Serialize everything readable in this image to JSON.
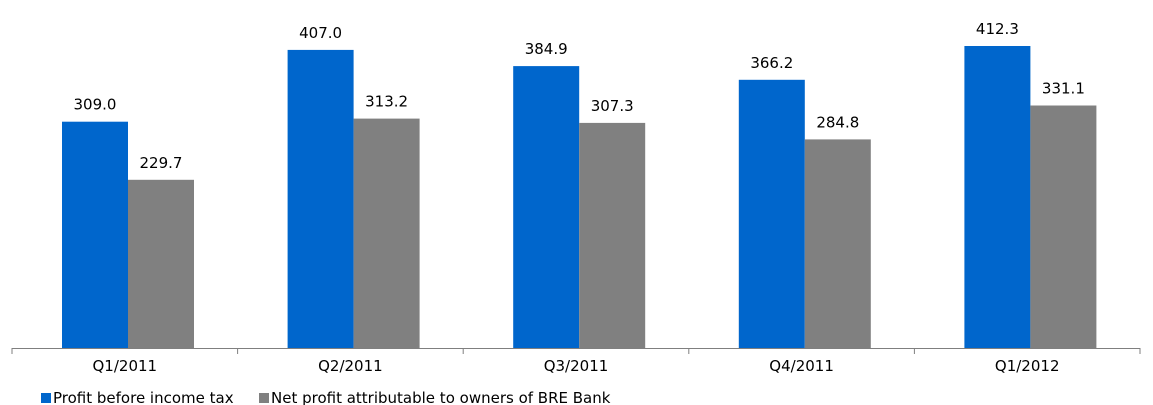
{
  "chart_data": {
    "type": "bar",
    "categories": [
      "Q1/2011",
      "Q2/2011",
      "Q3/2011",
      "Q4/2011",
      "Q1/2012"
    ],
    "series": [
      {
        "name": "Profit before income tax",
        "color": "#0066CC",
        "values": [
          309.0,
          407.0,
          384.9,
          366.2,
          412.3
        ],
        "labels": [
          "309.0",
          "407.0",
          "384.9",
          "366.2",
          "412.3"
        ]
      },
      {
        "name": "Net profit attributable to owners of BRE Bank",
        "color": "#808080",
        "values": [
          229.7,
          313.2,
          307.3,
          284.8,
          331.1
        ],
        "labels": [
          "229.7",
          "313.2",
          "307.3",
          "284.8",
          "331.1"
        ]
      }
    ],
    "ylim": [
      0,
      460
    ],
    "grid": false,
    "legend": "bottom-left",
    "axis_color": "#7F7F7F"
  }
}
